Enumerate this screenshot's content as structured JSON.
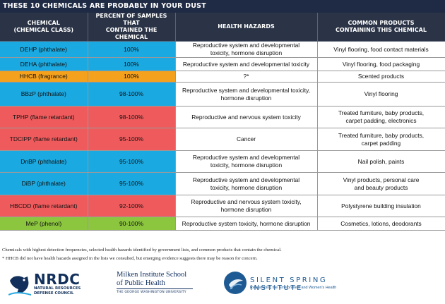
{
  "title": "THESE 10 CHEMICALS ARE PROBABLY IN YOUR DUST",
  "headers": {
    "chemical": [
      "CHEMICAL",
      "(CHEMICAL CLASS)"
    ],
    "percent": [
      "PERCENT OF SAMPLES THAT",
      "CONTAINED THE CHEMICAL"
    ],
    "hazards": [
      "HEALTH HAZARDS"
    ],
    "products": [
      "COMMON PRODUCTS",
      "CONTAINING THIS CHEMICAL"
    ]
  },
  "colors": {
    "phthalate": "#1aa9e1",
    "fragrance": "#f4a11d",
    "flame_retardant": "#ef5b5d",
    "phenol": "#8cc63f",
    "header": "#2b3446",
    "title_bar": "#1f2a44"
  },
  "rows": [
    {
      "chemical": "DEHP (phthalate)",
      "percent": "100%",
      "hazards": [
        "Reproductive system and developmental",
        "toxicity, hormone disruption"
      ],
      "products": [
        "Vinyl flooring, food contact materials"
      ],
      "class": "phthalate"
    },
    {
      "chemical": "DEHA (phthalate)",
      "percent": "100%",
      "hazards": [
        "Reproductive system and developmental toxicity"
      ],
      "products": [
        "Vinyl flooring, food packaging"
      ],
      "class": "phthalate"
    },
    {
      "chemical": "HHCB (fragrance)",
      "percent": "100%",
      "hazards": [
        "?*"
      ],
      "products": [
        "Scented products"
      ],
      "class": "fragrance"
    },
    {
      "chemical": "BBzP (phthalate)",
      "percent": "98-100%",
      "hazards": [
        "Reproductive system and developmental toxicity,",
        "hormone disruption"
      ],
      "products": [
        "Vinyl flooring"
      ],
      "class": "phthalate"
    },
    {
      "chemical": "TPHP (flame retardant)",
      "percent": "98-100%",
      "hazards": [
        "Reproductive and nervous system toxicity"
      ],
      "products": [
        "Treated furniture, baby products,",
        "carpet padding, electronics"
      ],
      "class": "flame_retardant"
    },
    {
      "chemical": "TDCIPP (flame retardant)",
      "percent": "95-100%",
      "hazards": [
        "Cancer"
      ],
      "products": [
        "Treated furniture, baby products,",
        "carpet padding"
      ],
      "class": "flame_retardant"
    },
    {
      "chemical": "DnBP (phthalate)",
      "percent": "95-100%",
      "hazards": [
        "Reproductive system and developmental",
        "toxicity, hormone disruption"
      ],
      "products": [
        "Nail polish, paints"
      ],
      "class": "phthalate"
    },
    {
      "chemical": "DiBP (phthalate)",
      "percent": "95-100%",
      "hazards": [
        "Reproductive system and developmental",
        "toxicity, hormone disruption"
      ],
      "products": [
        "Vinyl products, personal care",
        "and beauty products"
      ],
      "class": "phthalate"
    },
    {
      "chemical": "HBCDD (flame retardant)",
      "percent": "92-100%",
      "hazards": [
        "Reproductive and nervous system toxicity,",
        "hormone disruption"
      ],
      "products": [
        "Polystyrene building insulation"
      ],
      "class": "flame_retardant"
    },
    {
      "chemical": "MeP (phenol)",
      "percent": "90-100%",
      "hazards": [
        "Reproductive system toxicity, hormone disruption"
      ],
      "products": [
        "Cosmetics, lotions, deodorants"
      ],
      "class": "phenol"
    }
  ],
  "footnotes": [
    "Chemicals with highest detection frequencies, selected health hazards identified by government lists, and common products that contain the chemical.",
    "* HHCB did not have health hazards assigned in the lists we consulted, but emerging evidence suggests there may be reason for concern."
  ],
  "logos": {
    "nrdc": {
      "name": "NRDC",
      "sub": [
        "NATURAL RESOURCES",
        "DEFENSE COUNCIL"
      ]
    },
    "milken": {
      "name": [
        "Milken Institute School",
        "of Public Health"
      ],
      "sub": "THE GEORGE WASHINGTON UNIVERSITY"
    },
    "silent_spring": {
      "name": "SILENT SPRING INSTITUTE",
      "sub": "Researching the Environment and Women's Health"
    }
  }
}
